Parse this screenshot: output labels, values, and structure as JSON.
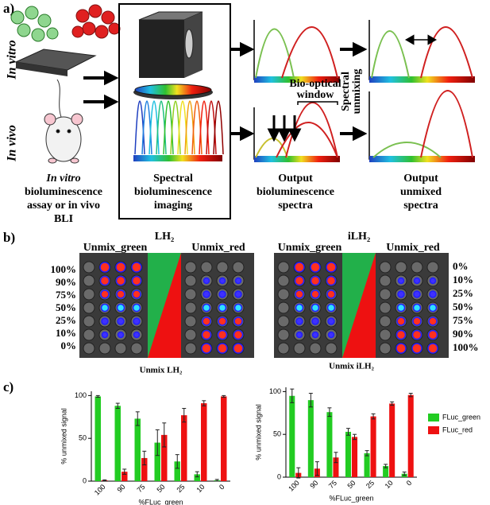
{
  "panel_a": {
    "label": "a)",
    "in_vitro": "In vitro",
    "in_vivo": "In vivo",
    "left_caption": [
      "In vitro",
      "bioluminescence",
      "assay or in vivo",
      "BLI"
    ],
    "center_caption": [
      "Spectral",
      "bioluminescence",
      "imaging"
    ],
    "output_caption": [
      "Output",
      "bioluminescence",
      "spectra"
    ],
    "unmixed_caption": [
      "Output",
      "unmixed",
      "spectra"
    ],
    "window_label": [
      "Bio-optical",
      "window"
    ],
    "unmixing_label": [
      "Spectral",
      "unmixing"
    ]
  },
  "panel_b": {
    "label": "b)",
    "left": {
      "title": "LH₂",
      "green_label": "Unmix_green",
      "red_label": "Unmix_red",
      "row_labels": [
        "100%",
        "90%",
        "75%",
        "50%",
        "25%",
        "10%",
        "0%"
      ]
    },
    "right": {
      "title": "iLH₂",
      "green_label": "Unmix_green",
      "red_label": "Unmix_red",
      "row_labels": [
        "0%",
        "10%",
        "25%",
        "50%",
        "75%",
        "90%",
        "100%"
      ]
    }
  },
  "panel_c": {
    "label": "c)"
  },
  "chart_data": [
    {
      "type": "bar",
      "title": "Unmix LH₂",
      "x_label": "%FLuc_green",
      "y_label": "% unmixed signal",
      "categories": [
        "100",
        "90",
        "75",
        "50",
        "25",
        "10",
        "0"
      ],
      "ylim": [
        0,
        105
      ],
      "yticks": [
        0,
        50,
        100
      ],
      "series": [
        {
          "color": "#22cc22",
          "values": [
            99,
            88,
            73,
            45,
            23,
            8,
            1
          ],
          "errors": [
            1,
            3,
            8,
            15,
            8,
            3,
            1
          ]
        },
        {
          "color": "#ee1111",
          "values": [
            1,
            11,
            27,
            54,
            77,
            91,
            99
          ],
          "errors": [
            0.5,
            3,
            8,
            14,
            8,
            3,
            1
          ]
        }
      ]
    },
    {
      "type": "bar",
      "title": "Unmix iLH₂",
      "x_label": "%FLuc_green",
      "y_label": "% unmixed signal",
      "categories": [
        "100",
        "90",
        "75",
        "50",
        "25",
        "10",
        "0"
      ],
      "ylim": [
        0,
        105
      ],
      "yticks": [
        0,
        50,
        100
      ],
      "legend": "right",
      "series": [
        {
          "name": "FLuc_green",
          "color": "#22cc22",
          "values": [
            95,
            90,
            76,
            53,
            28,
            13,
            4
          ],
          "errors": [
            8,
            8,
            5,
            4,
            3,
            2,
            2
          ]
        },
        {
          "name": "FLuc_red",
          "color": "#ee1111",
          "values": [
            5,
            10,
            23,
            47,
            71,
            86,
            96
          ],
          "errors": [
            6,
            8,
            6,
            3,
            3,
            2,
            2
          ]
        }
      ]
    }
  ]
}
